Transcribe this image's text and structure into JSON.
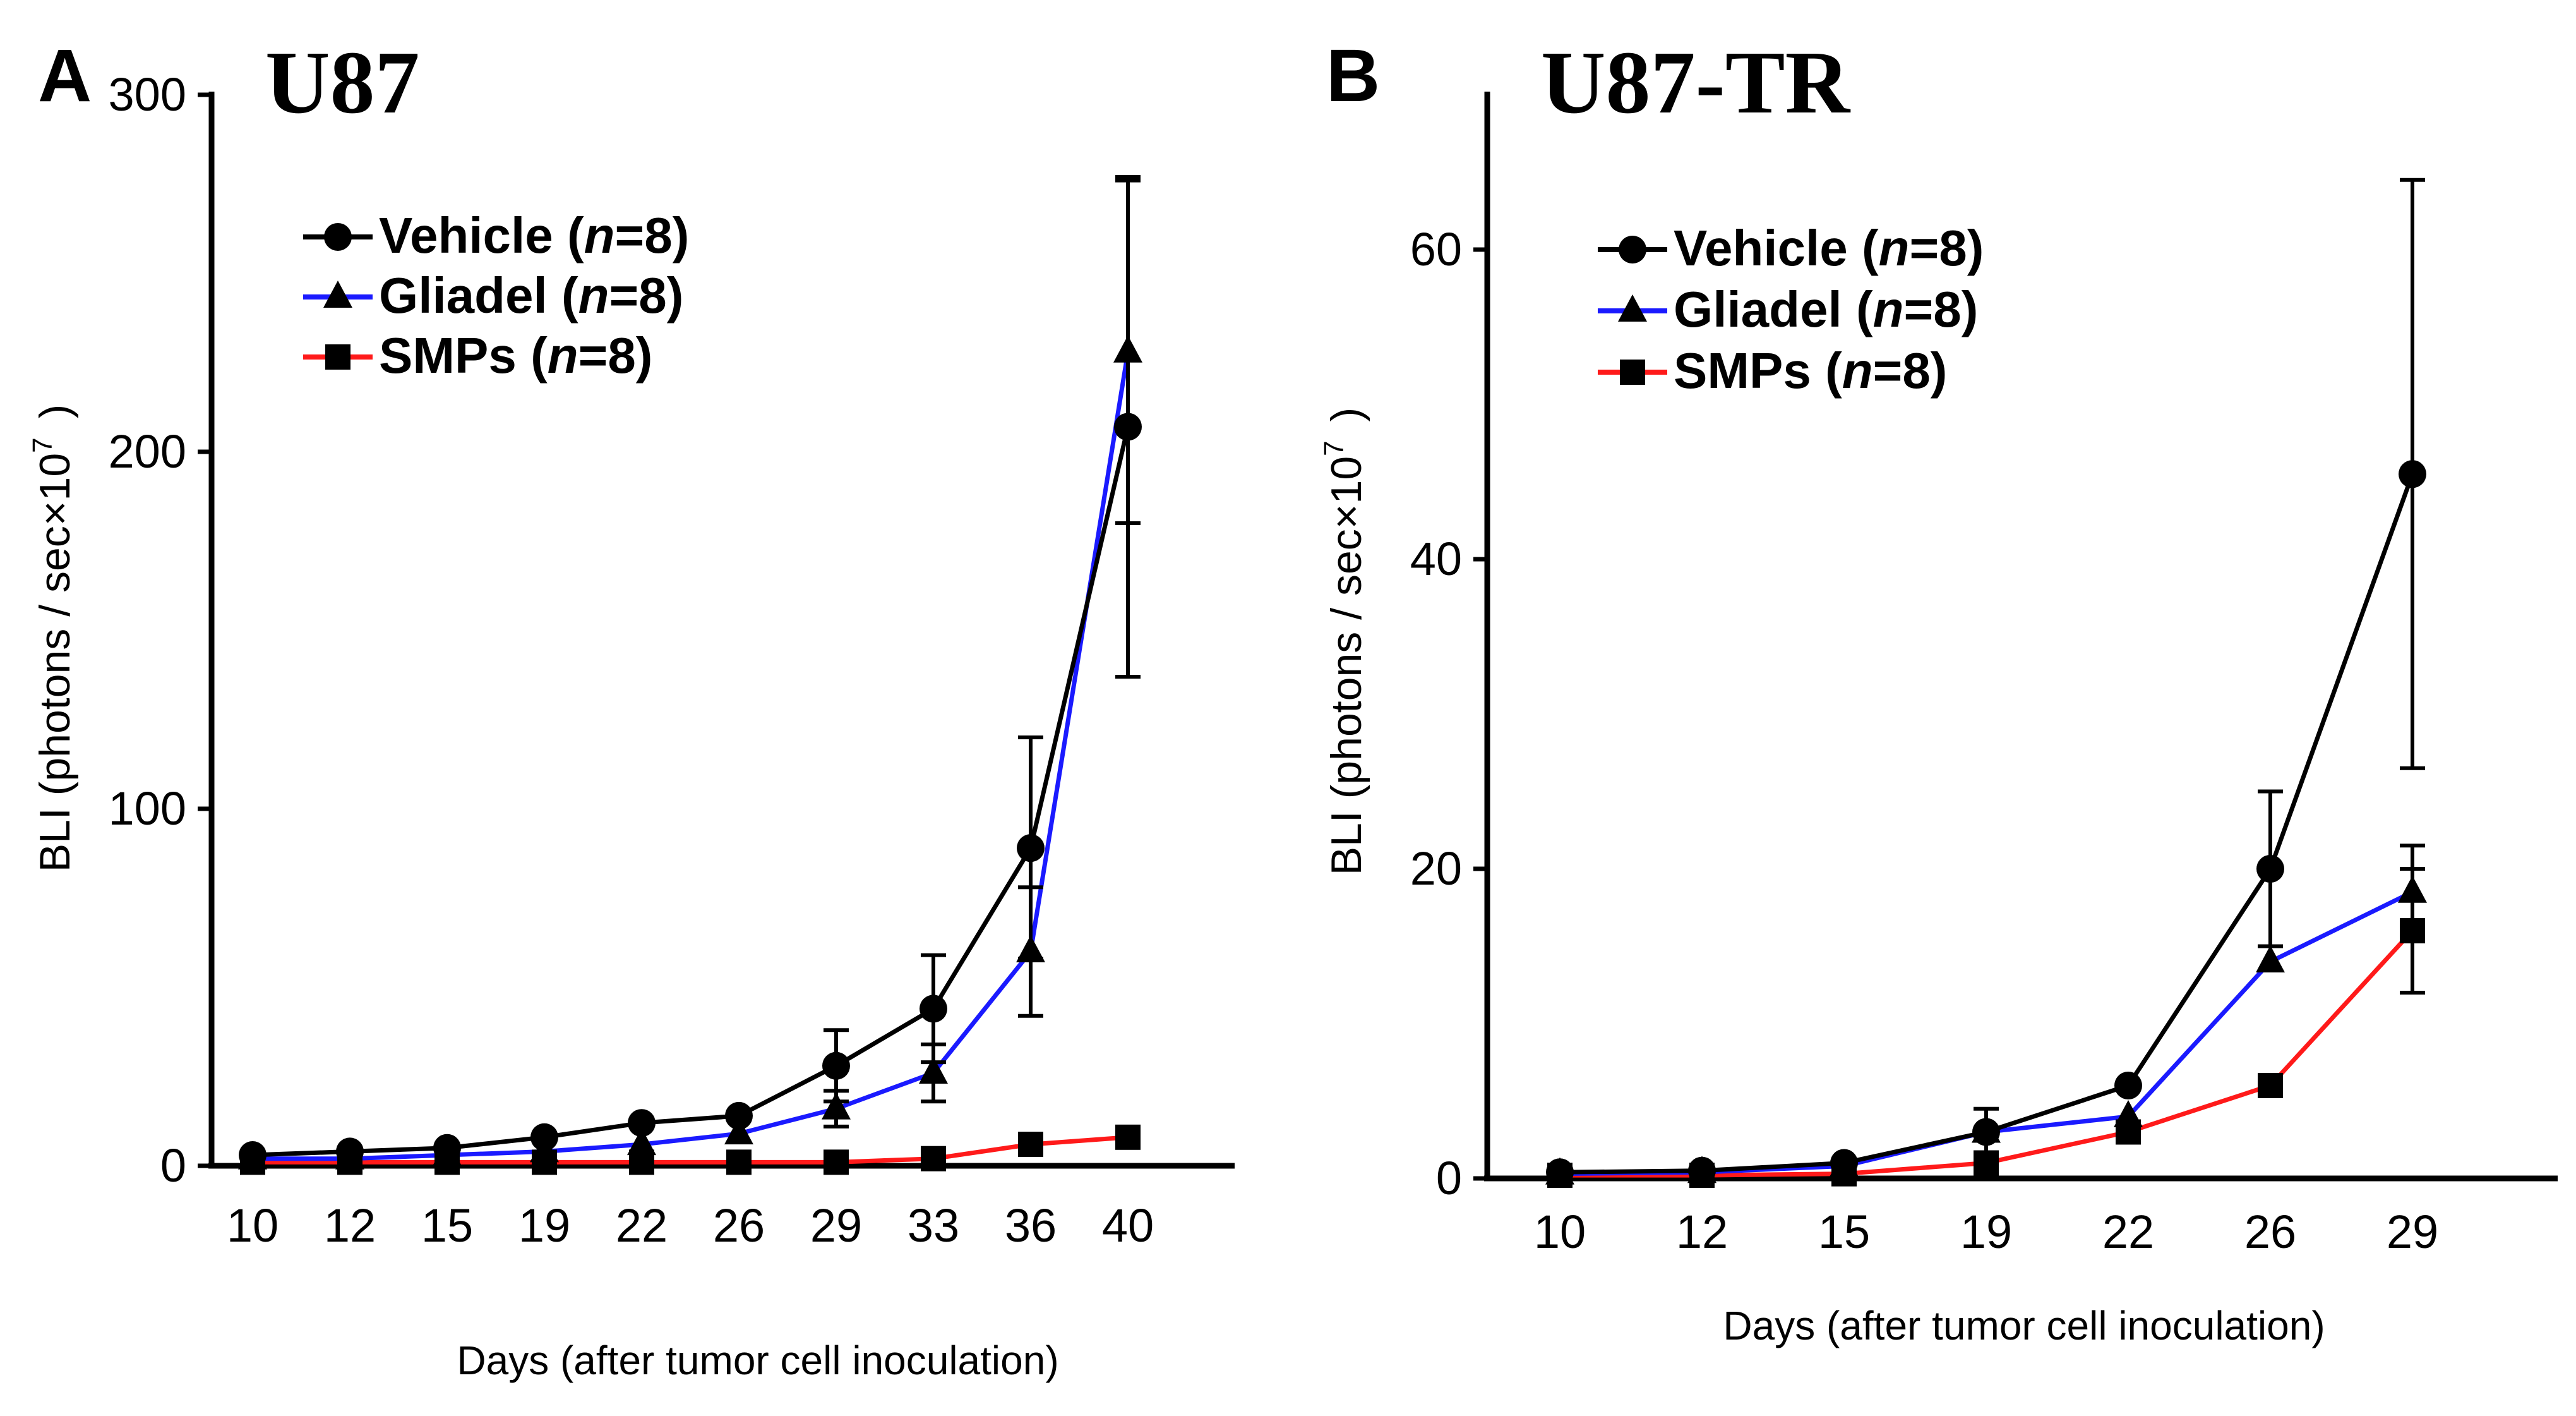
{
  "figure": {
    "panels": [
      {
        "letter": "A",
        "title": "U87"
      },
      {
        "letter": "B",
        "title": "U87-TR"
      }
    ]
  },
  "chart_data": [
    {
      "type": "line",
      "title": "U87",
      "panel": "A",
      "xlabel": "Days (after tumor cell inoculation)",
      "ylabel_parts": [
        "BLI (photons /  sec×10",
        "7",
        ")"
      ],
      "categories": [
        "10",
        "12",
        "15",
        "19",
        "22",
        "26",
        "29",
        "33",
        "36",
        "40"
      ],
      "ylim": [
        0,
        300
      ],
      "yticks": [
        0,
        100,
        200,
        300
      ],
      "legend_position": "top-left",
      "series": [
        {
          "name": "Vehicle",
          "n_label": "n",
          "n_value": "=8",
          "label_prefix": "Vehicle (",
          "color": "#000000",
          "marker": "circle",
          "values": [
            3,
            4,
            5,
            8,
            12,
            14,
            28,
            44,
            89,
            207
          ],
          "errors": [
            0,
            0,
            0,
            0,
            0,
            0,
            10,
            15,
            31,
            70
          ]
        },
        {
          "name": "Gliadel",
          "n_label": "n",
          "n_value": "=8",
          "label_prefix": "Gliadel (",
          "color": "#1a1aff",
          "marker": "triangle",
          "values": [
            2,
            2,
            3,
            4,
            6,
            9,
            16,
            26,
            60,
            228
          ],
          "errors": [
            0,
            0,
            0,
            0,
            0,
            0,
            5,
            8,
            18,
            48
          ]
        },
        {
          "name": "SMPs",
          "n_label": "n",
          "n_value": "=8",
          "label_prefix": "SMPs (",
          "color": "#ff1a1a",
          "marker": "square",
          "values": [
            1,
            1,
            1,
            1,
            1,
            1,
            1,
            2,
            6,
            8
          ],
          "errors": [
            0,
            0,
            0,
            0,
            0,
            0,
            0,
            0,
            0,
            0
          ]
        }
      ]
    },
    {
      "type": "line",
      "title": "U87-TR",
      "panel": "B",
      "xlabel": "Days  (after tumor cell inoculation)",
      "ylabel_parts": [
        "BLI (photons /  sec×10",
        "7",
        ")"
      ],
      "categories": [
        "10",
        "12",
        "15",
        "19",
        "22",
        "26",
        "29"
      ],
      "ylim": [
        0,
        70
      ],
      "yticks": [
        0,
        20,
        40,
        60
      ],
      "legend_position": "top-left",
      "series": [
        {
          "name": "Vehicle",
          "n_label": "n",
          "n_value": "=8",
          "label_prefix": "Vehicle (",
          "color": "#000000",
          "marker": "circle",
          "values": [
            0.4,
            0.5,
            1,
            3,
            6,
            20,
            45.5
          ],
          "errors": [
            0,
            0,
            0,
            1.5,
            0,
            5,
            19
          ]
        },
        {
          "name": "Gliadel",
          "n_label": "n",
          "n_value": "=8",
          "label_prefix": "Gliadel (",
          "color": "#1a1aff",
          "marker": "triangle",
          "values": [
            0.3,
            0.4,
            0.8,
            3,
            4,
            14,
            18.5
          ],
          "errors": [
            0,
            0,
            0,
            0,
            0,
            0,
            3
          ]
        },
        {
          "name": "SMPs",
          "n_label": "n",
          "n_value": "=8",
          "label_prefix": "SMPs (",
          "color": "#ff1a1a",
          "marker": "square",
          "values": [
            0.2,
            0.2,
            0.3,
            1,
            3,
            6,
            16
          ],
          "errors": [
            0,
            0,
            0,
            0,
            0,
            0,
            4
          ]
        }
      ]
    }
  ]
}
